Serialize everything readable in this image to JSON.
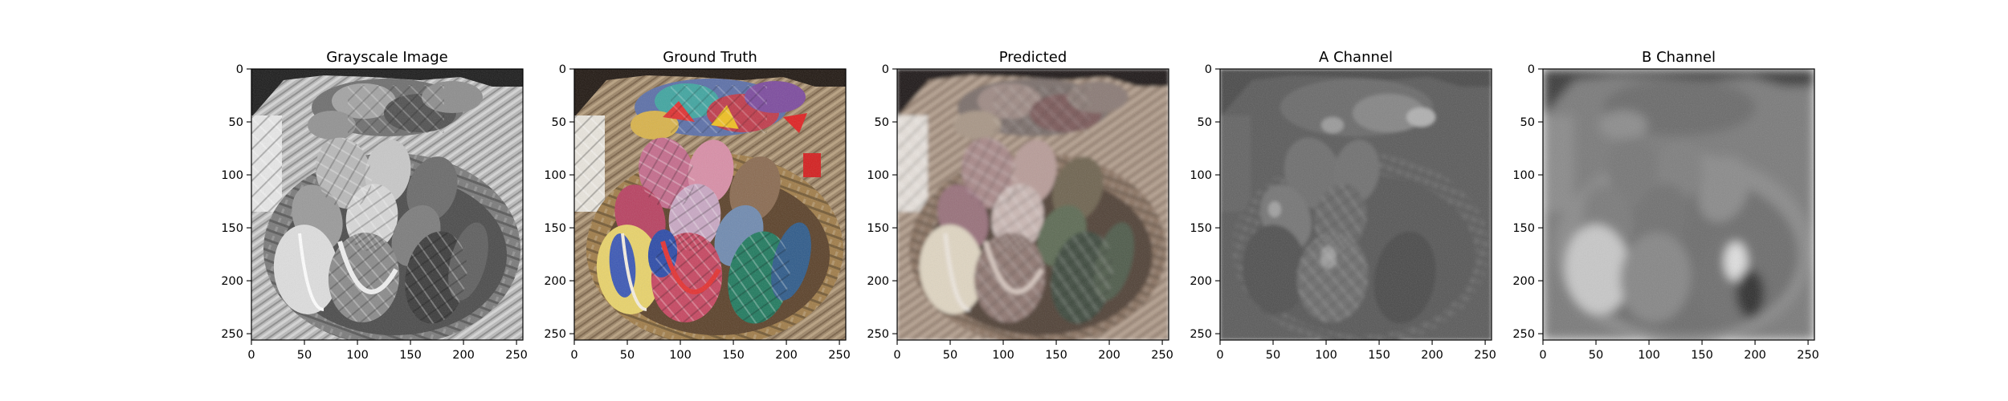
{
  "chart_data": [
    {
      "type": "image",
      "title": "Grayscale Image",
      "xlim": [
        0,
        256
      ],
      "ylim": [
        256,
        0
      ],
      "x_ticks": [
        0,
        50,
        100,
        150,
        200,
        250
      ],
      "y_ticks": [
        0,
        50,
        100,
        150,
        200,
        250
      ],
      "colormap": "grayscale"
    },
    {
      "type": "image",
      "title": "Ground Truth",
      "xlim": [
        0,
        256
      ],
      "ylim": [
        256,
        0
      ],
      "x_ticks": [
        0,
        50,
        100,
        150,
        200,
        250
      ],
      "y_ticks": [
        0,
        50,
        100,
        150,
        200,
        250
      ],
      "colormap": "full-color"
    },
    {
      "type": "image",
      "title": "Predicted",
      "xlim": [
        0,
        256
      ],
      "ylim": [
        256,
        0
      ],
      "x_ticks": [
        0,
        50,
        100,
        150,
        200,
        250
      ],
      "y_ticks": [
        0,
        50,
        100,
        150,
        200,
        250
      ],
      "colormap": "muted-color"
    },
    {
      "type": "image",
      "title": "A Channel",
      "xlim": [
        0,
        256
      ],
      "ylim": [
        256,
        0
      ],
      "x_ticks": [
        0,
        50,
        100,
        150,
        200,
        250
      ],
      "y_ticks": [
        0,
        50,
        100,
        150,
        200,
        250
      ],
      "colormap": "grayscale-low-contrast"
    },
    {
      "type": "image",
      "title": "B Channel",
      "xlim": [
        0,
        256
      ],
      "ylim": [
        256,
        0
      ],
      "x_ticks": [
        0,
        50,
        100,
        150,
        200,
        250
      ],
      "y_ticks": [
        0,
        50,
        100,
        150,
        200,
        250
      ],
      "colormap": "grayscale-blurred"
    }
  ]
}
